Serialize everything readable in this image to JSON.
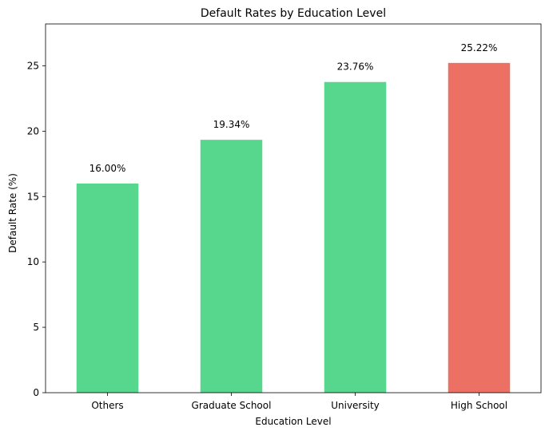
{
  "chart_data": {
    "type": "bar",
    "title": "Default Rates by Education Level",
    "xlabel": "Education Level",
    "ylabel": "Default Rate (%)",
    "categories": [
      "Others",
      "Graduate School",
      "University",
      "High School"
    ],
    "values": [
      16.0,
      19.34,
      23.76,
      25.22
    ],
    "value_labels": [
      "16.00%",
      "19.34%",
      "23.76%",
      "25.22%"
    ],
    "ylim": [
      0,
      28.2
    ],
    "yticks": [
      0,
      5,
      10,
      15,
      20,
      25
    ],
    "grid": false,
    "colors": {
      "default_bar": "#57d68d",
      "highlight_bar": "#ec7063"
    },
    "highlight_index": 3
  }
}
